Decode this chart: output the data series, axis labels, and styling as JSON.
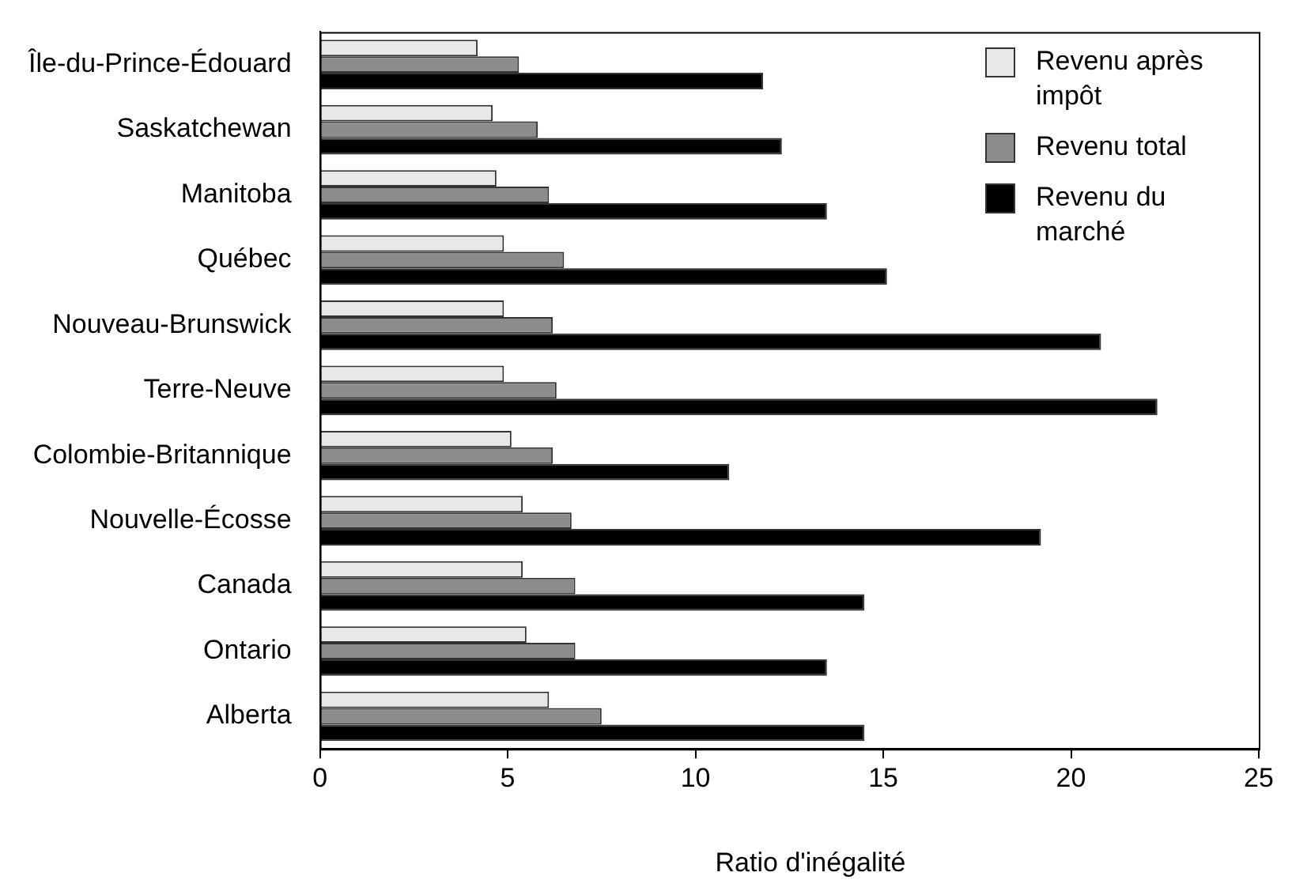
{
  "chart_data": {
    "type": "bar",
    "orientation": "horizontal",
    "xlabel": "Ratio d'inégalité",
    "categories": [
      "Île-du-Prince-Édouard",
      "Saskatchewan",
      "Manitoba",
      "Québec",
      "Nouveau-Brunswick",
      "Terre-Neuve",
      "Colombie-Britannique",
      "Nouvelle-Écosse",
      "Canada",
      "Ontario",
      "Alberta"
    ],
    "series": [
      {
        "name": "Revenu après impôt",
        "color": "#e8e8e8",
        "values": [
          4.2,
          4.6,
          4.7,
          4.9,
          4.9,
          4.9,
          5.1,
          5.4,
          5.4,
          5.5,
          6.1
        ]
      },
      {
        "name": "Revenu total",
        "color": "#8c8c8c",
        "values": [
          5.3,
          5.8,
          6.1,
          6.5,
          6.2,
          6.3,
          6.2,
          6.7,
          6.8,
          6.8,
          7.5
        ]
      },
      {
        "name": "Revenu du marché",
        "color": "#000000",
        "values": [
          11.8,
          12.3,
          13.5,
          15.1,
          20.8,
          22.3,
          10.9,
          19.2,
          14.5,
          13.5,
          14.5
        ]
      }
    ],
    "xlim": [
      0,
      25
    ],
    "xticks": [
      0,
      5,
      10,
      15,
      20,
      25
    ],
    "grid": false,
    "legend": "top right"
  }
}
